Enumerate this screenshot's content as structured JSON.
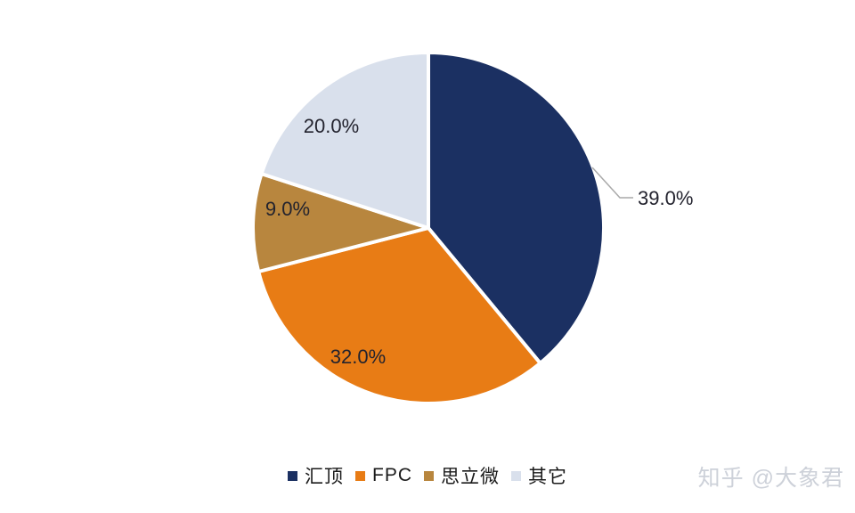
{
  "chart_data": {
    "type": "pie",
    "title": "",
    "categories": [
      "汇顶",
      "FPC",
      "思立微",
      "其它"
    ],
    "values": [
      39.0,
      32.0,
      9.0,
      20.0
    ],
    "labels": [
      "39.0%",
      "32.0%",
      "9.0%",
      "20.0%"
    ],
    "colors": [
      "#1b3062",
      "#e87c15",
      "#b8863e",
      "#d9e0ec"
    ],
    "start_angle_deg": 0,
    "direction": "clockwise",
    "legend_position": "bottom",
    "slice_gap_color": "#ffffff",
    "label_color": "#23232e",
    "leader_line_color": "#a9a9a9"
  },
  "watermark": {
    "text": "知乎 @大象君",
    "color": "#cdd1d9"
  }
}
